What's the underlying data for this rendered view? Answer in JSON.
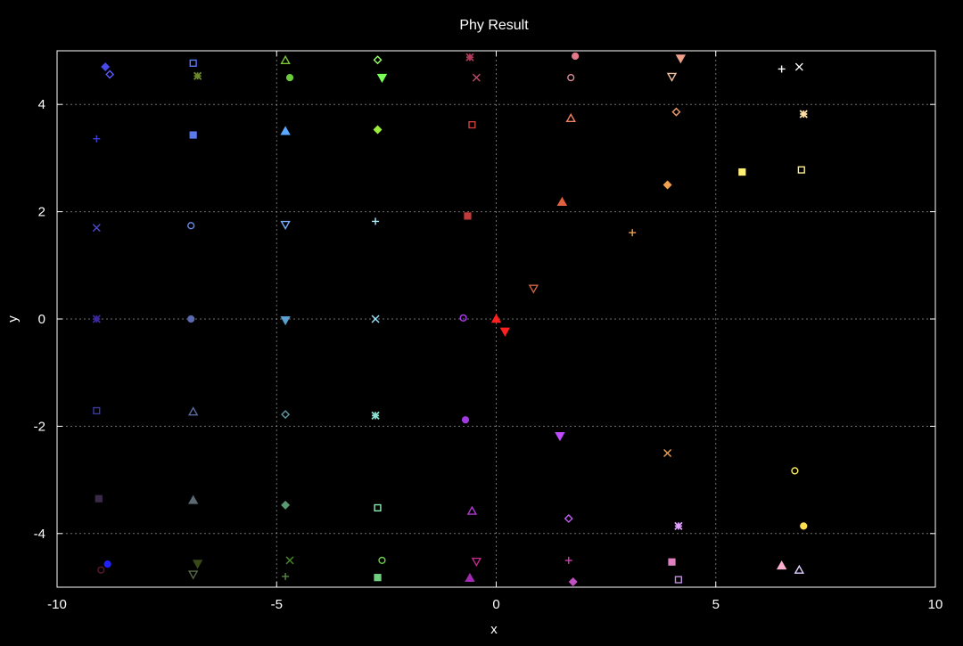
{
  "chart_data": {
    "type": "scatter",
    "title": "Phy Result",
    "xlabel": "x",
    "ylabel": "y",
    "xlim": [
      -10,
      10
    ],
    "ylim": [
      -5,
      5
    ],
    "xticks": [
      -10,
      -5,
      0,
      5,
      10
    ],
    "yticks": [
      -4,
      -2,
      0,
      2,
      4
    ],
    "xtick_labels": [
      "-10",
      "-5",
      "0",
      "5",
      "10"
    ],
    "ytick_labels": [
      "-4",
      "-2",
      "0",
      "2",
      "4"
    ],
    "grid": true,
    "legend": false,
    "background": "#000000",
    "axis_color": "#ffffff",
    "grid_color": "#a0a0a0",
    "points": [
      {
        "x": -8.9,
        "y": 4.7,
        "marker": "diamond-filled",
        "color": "#4a4ae8"
      },
      {
        "x": -8.8,
        "y": 4.56,
        "marker": "diamond-open",
        "color": "#5a5aff"
      },
      {
        "x": -6.9,
        "y": 4.77,
        "marker": "square-open",
        "color": "#5a7aff"
      },
      {
        "x": -6.8,
        "y": 4.53,
        "marker": "cross-filled",
        "color": "#6a8a2a"
      },
      {
        "x": -4.8,
        "y": 4.82,
        "marker": "triangle-up-open",
        "color": "#7ac83a"
      },
      {
        "x": -4.7,
        "y": 4.5,
        "marker": "circle-filled",
        "color": "#6acc3a"
      },
      {
        "x": -2.7,
        "y": 4.83,
        "marker": "diamond-open",
        "color": "#9aff6a"
      },
      {
        "x": -2.6,
        "y": 4.5,
        "marker": "triangle-down-filled",
        "color": "#7aff5a"
      },
      {
        "x": -0.6,
        "y": 4.88,
        "marker": "cross-filled",
        "color": "#b03a5a"
      },
      {
        "x": -0.45,
        "y": 4.5,
        "marker": "x",
        "color": "#c04a6a"
      },
      {
        "x": 1.8,
        "y": 4.9,
        "marker": "circle-filled",
        "color": "#e07a8a"
      },
      {
        "x": 1.7,
        "y": 4.5,
        "marker": "circle-open",
        "color": "#e08a9a"
      },
      {
        "x": 4.2,
        "y": 4.86,
        "marker": "triangle-down-filled",
        "color": "#f0a08a"
      },
      {
        "x": 4.0,
        "y": 4.52,
        "marker": "triangle-down-open",
        "color": "#f0c0a0"
      },
      {
        "x": 6.5,
        "y": 4.66,
        "marker": "plus",
        "color": "#ffffff"
      },
      {
        "x": 6.9,
        "y": 4.7,
        "marker": "x",
        "color": "#ffffff"
      },
      {
        "x": -9.1,
        "y": 3.36,
        "marker": "plus",
        "color": "#4040d0"
      },
      {
        "x": -6.9,
        "y": 3.43,
        "marker": "square-filled",
        "color": "#5a7aee"
      },
      {
        "x": -4.8,
        "y": 3.5,
        "marker": "triangle-up-filled",
        "color": "#5aa8ff"
      },
      {
        "x": -2.7,
        "y": 3.53,
        "marker": "diamond-filled",
        "color": "#9aee3a"
      },
      {
        "x": -0.55,
        "y": 3.62,
        "marker": "square-open",
        "color": "#d04040"
      },
      {
        "x": 1.7,
        "y": 3.74,
        "marker": "triangle-up-open",
        "color": "#f08060"
      },
      {
        "x": 4.1,
        "y": 3.86,
        "marker": "diamond-open",
        "color": "#f0a070"
      },
      {
        "x": 7.0,
        "y": 3.82,
        "marker": "cross-filled",
        "color": "#ffe0a0"
      },
      {
        "x": 5.6,
        "y": 2.74,
        "marker": "square-filled",
        "color": "#ffee70"
      },
      {
        "x": 6.95,
        "y": 2.78,
        "marker": "square-open",
        "color": "#ffee90"
      },
      {
        "x": 3.9,
        "y": 2.5,
        "marker": "diamond-filled",
        "color": "#f0a050"
      },
      {
        "x": 1.5,
        "y": 2.18,
        "marker": "triangle-up-filled",
        "color": "#e06040"
      },
      {
        "x": 3.1,
        "y": 1.61,
        "marker": "plus",
        "color": "#f0a050"
      },
      {
        "x": -0.65,
        "y": 1.92,
        "marker": "square-filled",
        "color": "#c03a3a"
      },
      {
        "x": -2.75,
        "y": 1.82,
        "marker": "plus",
        "color": "#aaeeff"
      },
      {
        "x": -4.8,
        "y": 1.76,
        "marker": "triangle-down-open",
        "color": "#7ab0ff"
      },
      {
        "x": -6.95,
        "y": 1.74,
        "marker": "circle-open",
        "color": "#6a8aee"
      },
      {
        "x": -9.1,
        "y": 1.7,
        "marker": "x",
        "color": "#4a4ad0"
      },
      {
        "x": 0.85,
        "y": 0.57,
        "marker": "triangle-down-open",
        "color": "#d06040"
      },
      {
        "x": 0.0,
        "y": 0.0,
        "marker": "triangle-up-filled",
        "color": "#ff2020"
      },
      {
        "x": 0.2,
        "y": -0.23,
        "marker": "triangle-down-filled",
        "color": "#ff2020"
      },
      {
        "x": -0.75,
        "y": 0.02,
        "marker": "circle-open",
        "color": "#b03af0"
      },
      {
        "x": -2.75,
        "y": 0.0,
        "marker": "x",
        "color": "#9ae8ff"
      },
      {
        "x": -4.8,
        "y": -0.02,
        "marker": "triangle-down-filled",
        "color": "#5aa0d0"
      },
      {
        "x": -6.95,
        "y": 0.0,
        "marker": "circle-filled",
        "color": "#5a6ab0"
      },
      {
        "x": -9.1,
        "y": 0.0,
        "marker": "cross-filled",
        "color": "#3a2a9a"
      },
      {
        "x": -9.1,
        "y": -1.71,
        "marker": "square-open",
        "color": "#3a3aa0"
      },
      {
        "x": -6.9,
        "y": -1.73,
        "marker": "triangle-up-open",
        "color": "#5a6aa0"
      },
      {
        "x": -4.8,
        "y": -1.78,
        "marker": "diamond-open",
        "color": "#5a9aa0"
      },
      {
        "x": -2.75,
        "y": -1.8,
        "marker": "cross-filled",
        "color": "#8ae0d0"
      },
      {
        "x": -0.7,
        "y": -1.88,
        "marker": "circle-filled",
        "color": "#a03ae0"
      },
      {
        "x": 1.45,
        "y": -2.18,
        "marker": "triangle-down-filled",
        "color": "#c04aff"
      },
      {
        "x": 3.9,
        "y": -2.5,
        "marker": "x",
        "color": "#f0a050"
      },
      {
        "x": 6.8,
        "y": -2.83,
        "marker": "circle-open",
        "color": "#ffee60"
      },
      {
        "x": 7.0,
        "y": -3.86,
        "marker": "circle-filled",
        "color": "#ffe050"
      },
      {
        "x": -9.05,
        "y": -3.35,
        "marker": "square-filled",
        "color": "#3a2a4a"
      },
      {
        "x": -6.9,
        "y": -3.38,
        "marker": "triangle-up-filled",
        "color": "#5a6a70"
      },
      {
        "x": -4.8,
        "y": -3.47,
        "marker": "diamond-filled",
        "color": "#5a9a70"
      },
      {
        "x": -2.7,
        "y": -3.52,
        "marker": "square-open",
        "color": "#8aeeb0"
      },
      {
        "x": -0.55,
        "y": -3.58,
        "marker": "triangle-up-open",
        "color": "#b03ad0"
      },
      {
        "x": 1.65,
        "y": -3.72,
        "marker": "diamond-open",
        "color": "#c060f0"
      },
      {
        "x": 4.15,
        "y": -3.86,
        "marker": "cross-filled",
        "color": "#e0a0ff"
      },
      {
        "x": -8.85,
        "y": -4.57,
        "marker": "circle-filled",
        "color": "#2020ff"
      },
      {
        "x": -9.0,
        "y": -4.68,
        "marker": "circle-open",
        "color": "#5a1a2a"
      },
      {
        "x": -6.8,
        "y": -4.56,
        "marker": "triangle-down-filled",
        "color": "#3a4a1a"
      },
      {
        "x": -6.9,
        "y": -4.76,
        "marker": "triangle-down-open",
        "color": "#5a6a4a"
      },
      {
        "x": -4.7,
        "y": -4.5,
        "marker": "x",
        "color": "#4a8a2a"
      },
      {
        "x": -4.8,
        "y": -4.8,
        "marker": "plus",
        "color": "#5a8a4a"
      },
      {
        "x": -2.6,
        "y": -4.5,
        "marker": "circle-open",
        "color": "#6ad04a"
      },
      {
        "x": -2.7,
        "y": -4.82,
        "marker": "square-filled",
        "color": "#70d080"
      },
      {
        "x": -0.45,
        "y": -4.52,
        "marker": "triangle-down-open",
        "color": "#c02a8a"
      },
      {
        "x": -0.6,
        "y": -4.83,
        "marker": "triangle-up-filled",
        "color": "#a02ab0"
      },
      {
        "x": 1.65,
        "y": -4.5,
        "marker": "plus",
        "color": "#d040b0"
      },
      {
        "x": 1.75,
        "y": -4.9,
        "marker": "diamond-filled",
        "color": "#c050c0"
      },
      {
        "x": 4.0,
        "y": -4.53,
        "marker": "square-filled",
        "color": "#e080c0"
      },
      {
        "x": 4.15,
        "y": -4.86,
        "marker": "square-open",
        "color": "#c090e0"
      },
      {
        "x": 6.5,
        "y": -4.6,
        "marker": "triangle-up-filled",
        "color": "#ffb0d0"
      },
      {
        "x": 6.9,
        "y": -4.68,
        "marker": "triangle-up-open",
        "color": "#e0d0ff"
      }
    ]
  }
}
